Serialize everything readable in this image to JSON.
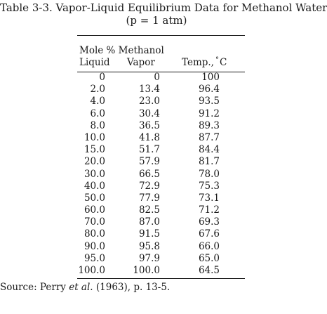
{
  "title": {
    "line1": "Table 3-3.  Vapor-Liquid Equilibrium Data for Methanol Water",
    "line2": "(p = 1 atm)"
  },
  "headers": {
    "group": "Mole % Methanol",
    "liquid": "Liquid",
    "vapor": "Vapor",
    "temp_prefix": "Temp.,",
    "temp_degree": "°",
    "temp_unit": "C"
  },
  "rows": [
    {
      "liquid": "0",
      "vapor": "0",
      "temp": "100"
    },
    {
      "liquid": "2.0",
      "vapor": "13.4",
      "temp": "96.4"
    },
    {
      "liquid": "4.0",
      "vapor": "23.0",
      "temp": "93.5"
    },
    {
      "liquid": "6.0",
      "vapor": "30.4",
      "temp": "91.2"
    },
    {
      "liquid": "8.0",
      "vapor": "36.5",
      "temp": "89.3"
    },
    {
      "liquid": "10.0",
      "vapor": "41.8",
      "temp": "87.7"
    },
    {
      "liquid": "15.0",
      "vapor": "51.7",
      "temp": "84.4"
    },
    {
      "liquid": "20.0",
      "vapor": "57.9",
      "temp": "81.7"
    },
    {
      "liquid": "30.0",
      "vapor": "66.5",
      "temp": "78.0"
    },
    {
      "liquid": "40.0",
      "vapor": "72.9",
      "temp": "75.3"
    },
    {
      "liquid": "50.0",
      "vapor": "77.9",
      "temp": "73.1"
    },
    {
      "liquid": "60.0",
      "vapor": "82.5",
      "temp": "71.2"
    },
    {
      "liquid": "70.0",
      "vapor": "87.0",
      "temp": "69.3"
    },
    {
      "liquid": "80.0",
      "vapor": "91.5",
      "temp": "67.6"
    },
    {
      "liquid": "90.0",
      "vapor": "95.8",
      "temp": "66.0"
    },
    {
      "liquid": "95.0",
      "vapor": "97.9",
      "temp": "65.0"
    },
    {
      "liquid": "100.0",
      "vapor": "100.0",
      "temp": "64.5"
    }
  ],
  "source": {
    "prefix": "Source: Perry ",
    "italic": "et al.",
    "suffix": " (1963), p. 13-5."
  }
}
